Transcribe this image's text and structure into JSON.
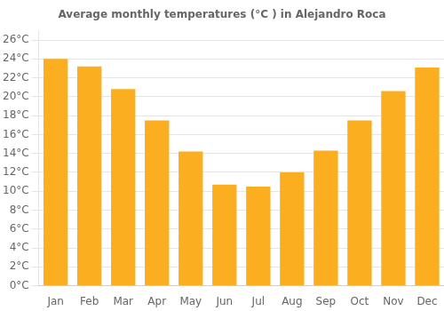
{
  "chart_data": {
    "type": "bar",
    "title": "Average monthly temperatures (°C ) in Alejandro Roca",
    "categories": [
      "Jan",
      "Feb",
      "Mar",
      "Apr",
      "May",
      "Jun",
      "Jul",
      "Aug",
      "Sep",
      "Oct",
      "Nov",
      "Dec"
    ],
    "values": [
      24.0,
      23.2,
      20.8,
      17.5,
      14.2,
      10.7,
      10.5,
      12.0,
      14.3,
      17.5,
      20.6,
      23.1
    ],
    "color": "#FBAF20",
    "ylim": [
      0,
      27
    ],
    "yticks": [
      {
        "value": 0,
        "label": "0°C"
      },
      {
        "value": 2,
        "label": "2°C"
      },
      {
        "value": 4,
        "label": "4°C"
      },
      {
        "value": 6,
        "label": "6°C"
      },
      {
        "value": 8,
        "label": "8°C"
      },
      {
        "value": 10,
        "label": "10°C"
      },
      {
        "value": 12,
        "label": "12°C"
      },
      {
        "value": 14,
        "label": "14°C"
      },
      {
        "value": 16,
        "label": "16°C"
      },
      {
        "value": 18,
        "label": "18°C"
      },
      {
        "value": 20,
        "label": "20°C"
      },
      {
        "value": 22,
        "label": "22°C"
      },
      {
        "value": 24,
        "label": "24°C"
      },
      {
        "value": 26,
        "label": "26°C"
      }
    ],
    "grid": true
  }
}
